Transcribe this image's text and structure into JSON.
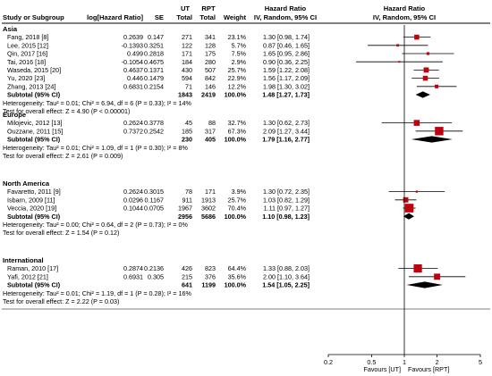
{
  "chart_data": {
    "type": "forest",
    "axis": {
      "scale": "log",
      "range": [
        0.2,
        5
      ],
      "ticks": [
        {
          "value": 0.2,
          "label": "0.2"
        },
        {
          "value": 0.5,
          "label": "0.5"
        },
        {
          "value": 1,
          "label": "1"
        },
        {
          "value": 2,
          "label": "2"
        },
        {
          "value": 5,
          "label": "5"
        }
      ],
      "left_label": "Favours [UT]",
      "right_label": "Favours [RPT]"
    },
    "columns": {
      "study": "Study or Subgroup",
      "loghr": "log[Hazard Ratio]",
      "se": "SE",
      "ut_top": "UT",
      "ut": "Total",
      "rpt_top": "RPT",
      "rpt": "Total",
      "weight": "Weight",
      "hr_top": "Hazard Ratio",
      "hr": "IV, Random, 95% CI",
      "plot_top": "Hazard Ratio",
      "plot": "IV, Random, 95% CI"
    },
    "subgroups": [
      {
        "name": "Asia",
        "studies": [
          {
            "study": "Fang, 2018 [8]",
            "loghr": "0.2639",
            "se": "0.147",
            "ut": "271",
            "rpt": "341",
            "weight": "23.1%",
            "ci_text": "1.30 [0.98, 1.74]",
            "hr": 1.3,
            "lo": 0.98,
            "hi": 1.74,
            "w": 23.1
          },
          {
            "study": "Lee, 2015 [12]",
            "loghr": "-0.1393",
            "se": "0.3251",
            "ut": "122",
            "rpt": "128",
            "weight": "5.7%",
            "ci_text": "0.87 [0.46, 1.65]",
            "hr": 0.87,
            "lo": 0.46,
            "hi": 1.65,
            "w": 5.7
          },
          {
            "study": "Qin, 2017 [16]",
            "loghr": "0.499",
            "se": "0.2818",
            "ut": "171",
            "rpt": "175",
            "weight": "7.5%",
            "ci_text": "1.65 [0.95, 2.86]",
            "hr": 1.65,
            "lo": 0.95,
            "hi": 2.86,
            "w": 7.5
          },
          {
            "study": "Tai, 2016 [18]",
            "loghr": "-0.1054",
            "se": "0.4675",
            "ut": "184",
            "rpt": "280",
            "weight": "2.9%",
            "ci_text": "0.90 [0.36, 2.25]",
            "hr": 0.9,
            "lo": 0.36,
            "hi": 2.25,
            "w": 2.9
          },
          {
            "study": "Waseda, 2015 [20]",
            "loghr": "0.4637",
            "se": "0.1371",
            "ut": "430",
            "rpt": "507",
            "weight": "25.7%",
            "ci_text": "1.59 [1.22, 2.08]",
            "hr": 1.59,
            "lo": 1.22,
            "hi": 2.08,
            "w": 25.7
          },
          {
            "study": "Yu, 2020 [23]",
            "loghr": "0.446",
            "se": "0.1479",
            "ut": "594",
            "rpt": "842",
            "weight": "22.9%",
            "ci_text": "1.56 [1.17, 2.09]",
            "hr": 1.56,
            "lo": 1.17,
            "hi": 2.09,
            "w": 22.9
          },
          {
            "study": "Zhang, 2013 [24]",
            "loghr": "0.6831",
            "se": "0.2154",
            "ut": "71",
            "rpt": "146",
            "weight": "12.2%",
            "ci_text": "1.98 [1.30, 3.02]",
            "hr": 1.98,
            "lo": 1.3,
            "hi": 3.02,
            "w": 12.2
          }
        ],
        "subtotal": {
          "label": "Subtotal (95% CI)",
          "ut": "1843",
          "rpt": "2419",
          "weight": "100.0%",
          "ci_text": "1.48 [1.27, 1.73]",
          "hr": 1.48,
          "lo": 1.27,
          "hi": 1.73
        },
        "heterogeneity": "Heterogeneity: Tau² = 0.01; Chi² = 6.94, df = 6 (P = 0.33); I² = 14%",
        "overall": "Test for overall effect: Z = 4.90 (P < 0.00001)"
      },
      {
        "name": "Europe",
        "studies": [
          {
            "study": "Milojevic, 2012 [13]",
            "loghr": "0.2624",
            "se": "0.3778",
            "ut": "45",
            "rpt": "88",
            "weight": "32.7%",
            "ci_text": "1.30 [0.62, 2.73]",
            "hr": 1.3,
            "lo": 0.62,
            "hi": 2.73,
            "w": 32.7
          },
          {
            "study": "Ouzzane, 2011 [15]",
            "loghr": "0.7372",
            "se": "0.2542",
            "ut": "185",
            "rpt": "317",
            "weight": "67.3%",
            "ci_text": "2.09 [1.27, 3.44]",
            "hr": 2.09,
            "lo": 1.27,
            "hi": 3.44,
            "w": 67.3
          }
        ],
        "subtotal": {
          "label": "Subtotal (95% CI)",
          "ut": "230",
          "rpt": "405",
          "weight": "100.0%",
          "ci_text": "1.79 [1.16, 2.77]",
          "hr": 1.79,
          "lo": 1.16,
          "hi": 2.77
        },
        "heterogeneity": "Heterogeneity: Tau² = 0.01; Chi² = 1.09, df = 1 (P = 0.30); I² = 8%",
        "overall": "Test for overall effect: Z = 2.61 (P = 0.009)"
      },
      {
        "name": "North America",
        "studies": [
          {
            "study": "Favaretto, 2011 [9]",
            "loghr": "0.2624",
            "se": "0.3015",
            "ut": "78",
            "rpt": "171",
            "weight": "3.9%",
            "ci_text": "1.30 [0.72, 2.35]",
            "hr": 1.3,
            "lo": 0.72,
            "hi": 2.35,
            "w": 3.9
          },
          {
            "study": "Isbarn, 2009 [11]",
            "loghr": "0.0296",
            "se": "0.1167",
            "ut": "911",
            "rpt": "1913",
            "weight": "25.7%",
            "ci_text": "1.03 [0.82, 1.29]",
            "hr": 1.03,
            "lo": 0.82,
            "hi": 1.29,
            "w": 25.7
          },
          {
            "study": "Veccia, 2020 [19]",
            "loghr": "0.1044",
            "se": "0.0705",
            "ut": "1967",
            "rpt": "3602",
            "weight": "70.4%",
            "ci_text": "1.11 [0.97, 1.27]",
            "hr": 1.11,
            "lo": 0.97,
            "hi": 1.27,
            "w": 70.4
          }
        ],
        "subtotal": {
          "label": "Subtotal (95% CI)",
          "ut": "2956",
          "rpt": "5686",
          "weight": "100.0%",
          "ci_text": "1.10 [0.98, 1.23]",
          "hr": 1.1,
          "lo": 0.98,
          "hi": 1.23
        },
        "heterogeneity": "Heterogeneity: Tau² = 0.00; Chi² = 0.64, df = 2 (P = 0.73); I² = 0%",
        "overall": "Test for overall effect: Z = 1.54 (P = 0.12)"
      },
      {
        "name": "International",
        "studies": [
          {
            "study": "Raman, 2010 [17]",
            "loghr": "0.2874",
            "se": "0.2136",
            "ut": "426",
            "rpt": "823",
            "weight": "64.4%",
            "ci_text": "1.33 [0.88, 2.03]",
            "hr": 1.33,
            "lo": 0.88,
            "hi": 2.03,
            "w": 64.4
          },
          {
            "study": "Yafi, 2012 [21]",
            "loghr": "0.6931",
            "se": "0.305",
            "ut": "215",
            "rpt": "376",
            "weight": "35.6%",
            "ci_text": "2.00 [1.10, 3.64]",
            "hr": 2.0,
            "lo": 1.1,
            "hi": 3.64,
            "w": 35.6
          }
        ],
        "subtotal": {
          "label": "Subtotal (95% CI)",
          "ut": "641",
          "rpt": "1199",
          "weight": "100.0%",
          "ci_text": "1.54 [1.05, 2.25]",
          "hr": 1.54,
          "lo": 1.05,
          "hi": 2.25
        },
        "heterogeneity": "Heterogeneity: Tau² = 0.01; Chi² = 1.19, df = 1 (P = 0.28); I² = 16%",
        "overall": "Test for overall effect: Z = 2.22 (P = 0.03)"
      }
    ],
    "colors": {
      "study_marker": "#c0000a",
      "ci_line": "#000000",
      "diamond": "#000000",
      "rule": "#000000"
    }
  }
}
